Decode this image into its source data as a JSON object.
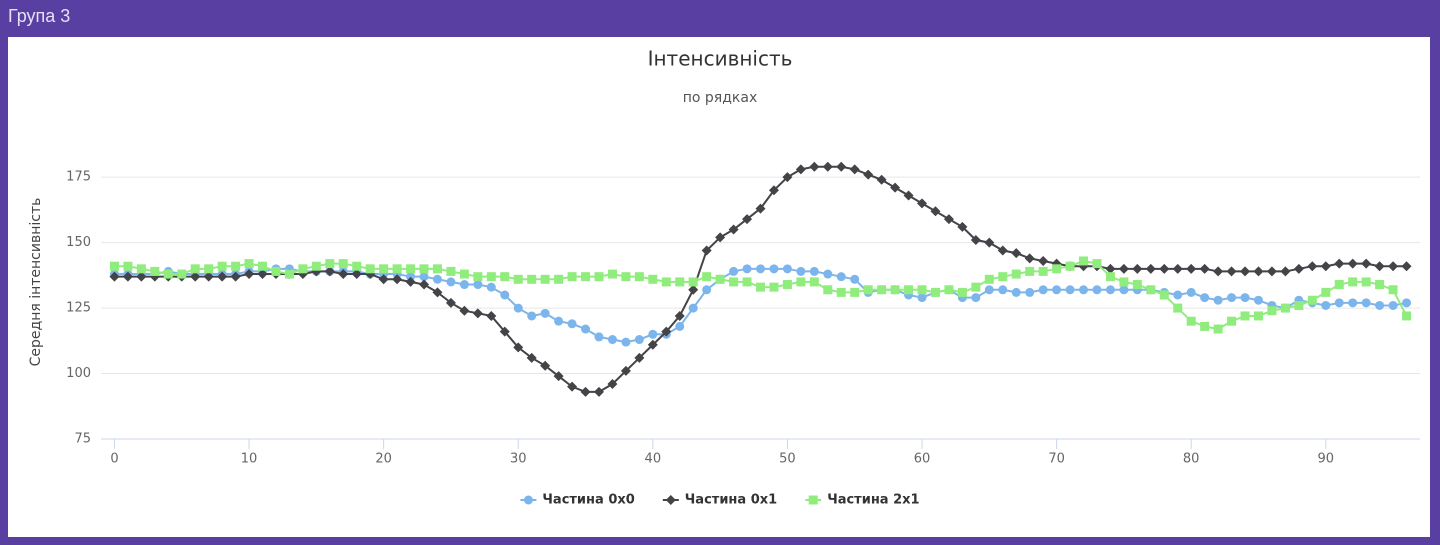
{
  "header": {
    "title": "Група 3"
  },
  "chart_data": {
    "type": "line",
    "title": "Інтенсивність",
    "subtitle": "по рядках",
    "y_label": "Середня інтенсивність",
    "x": [
      0,
      1,
      2,
      3,
      4,
      5,
      6,
      7,
      8,
      9,
      10,
      11,
      12,
      13,
      14,
      15,
      16,
      17,
      18,
      19,
      20,
      21,
      22,
      23,
      24,
      25,
      26,
      27,
      28,
      29,
      30,
      31,
      32,
      33,
      34,
      35,
      36,
      37,
      38,
      39,
      40,
      41,
      42,
      43,
      44,
      45,
      46,
      47,
      48,
      49,
      50,
      51,
      52,
      53,
      54,
      55,
      56,
      57,
      58,
      59,
      60,
      61,
      62,
      63,
      64,
      65,
      66,
      67,
      68,
      69,
      70,
      71,
      72,
      73,
      74,
      75,
      76,
      77,
      78,
      79,
      80,
      81,
      82,
      83,
      84,
      85,
      86,
      87,
      88,
      89,
      90,
      91,
      92,
      93,
      94,
      95,
      96
    ],
    "series": [
      {
        "name": "Частина 0x0",
        "color": "#7cb5ec",
        "marker": "circle",
        "values": [
          138,
          138,
          138,
          138,
          139,
          138,
          138,
          138,
          138,
          138,
          139,
          139,
          140,
          140,
          139,
          139,
          139,
          139,
          139,
          138,
          138,
          138,
          137,
          137,
          136,
          135,
          134,
          134,
          133,
          130,
          125,
          122,
          123,
          120,
          119,
          117,
          114,
          113,
          112,
          113,
          115,
          115,
          118,
          125,
          132,
          136,
          139,
          140,
          140,
          140,
          140,
          139,
          139,
          138,
          137,
          136,
          131,
          132,
          132,
          130,
          129,
          131,
          132,
          129,
          129,
          132,
          132,
          131,
          131,
          132,
          132,
          132,
          132,
          132,
          132,
          132,
          132,
          132,
          131,
          130,
          131,
          129,
          128,
          129,
          129,
          128,
          126,
          125,
          128,
          127,
          126,
          127,
          127,
          127,
          126,
          126,
          127
        ]
      },
      {
        "name": "Частина 0x1",
        "color": "#434348",
        "marker": "diamond",
        "values": [
          137,
          137,
          137,
          137,
          137,
          137,
          137,
          137,
          137,
          137,
          138,
          138,
          138,
          138,
          138,
          139,
          139,
          138,
          138,
          138,
          136,
          136,
          135,
          134,
          131,
          127,
          124,
          123,
          122,
          116,
          110,
          106,
          103,
          99,
          95,
          93,
          93,
          96,
          101,
          106,
          111,
          116,
          122,
          132,
          147,
          152,
          155,
          159,
          163,
          170,
          175,
          178,
          179,
          179,
          179,
          178,
          176,
          174,
          171,
          168,
          165,
          162,
          159,
          156,
          151,
          150,
          147,
          146,
          144,
          143,
          142,
          141,
          141,
          141,
          140,
          140,
          140,
          140,
          140,
          140,
          140,
          140,
          139,
          139,
          139,
          139,
          139,
          139,
          140,
          141,
          141,
          142,
          142,
          142,
          141,
          141,
          141
        ]
      },
      {
        "name": "Частина 2x1",
        "color": "#90ed7d",
        "marker": "square",
        "values": [
          141,
          141,
          140,
          139,
          138,
          138,
          140,
          140,
          141,
          141,
          142,
          141,
          139,
          138,
          140,
          141,
          142,
          142,
          141,
          140,
          140,
          140,
          140,
          140,
          140,
          139,
          138,
          137,
          137,
          137,
          136,
          136,
          136,
          136,
          137,
          137,
          137,
          138,
          137,
          137,
          136,
          135,
          135,
          135,
          137,
          136,
          135,
          135,
          133,
          133,
          134,
          135,
          135,
          132,
          131,
          131,
          132,
          132,
          132,
          132,
          132,
          131,
          132,
          131,
          133,
          136,
          137,
          138,
          139,
          139,
          140,
          141,
          143,
          142,
          137,
          135,
          134,
          132,
          130,
          125,
          120,
          118,
          117,
          120,
          122,
          122,
          124,
          125,
          126,
          128,
          131,
          134,
          135,
          135,
          134,
          132,
          122
        ]
      }
    ],
    "xlim": [
      -1,
      97
    ],
    "xticks": [
      0,
      10,
      20,
      30,
      40,
      50,
      60,
      70,
      80,
      90
    ],
    "ylim": [
      75,
      185
    ],
    "yticks": [
      75,
      100,
      125,
      150,
      175
    ],
    "grid": true,
    "legend": "bottom"
  }
}
